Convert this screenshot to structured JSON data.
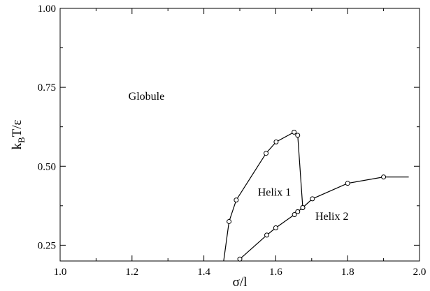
{
  "chart_data": {
    "type": "line",
    "title": "",
    "xlabel": "σ/l",
    "ylabel_parts": {
      "k": "k",
      "sub": "B",
      "rest": "T/ε"
    },
    "xlim": [
      1.0,
      2.0
    ],
    "ylim": [
      0.2,
      1.0
    ],
    "xticks": [
      1.0,
      1.2,
      1.4,
      1.6,
      1.8,
      2.0
    ],
    "xtick_labels": [
      "1.0",
      "1.2",
      "1.4",
      "1.6",
      "1.8",
      "2.0"
    ],
    "yticks": [
      0.25,
      0.5,
      0.75,
      1.0
    ],
    "ytick_labels": [
      "0.25",
      "0.50",
      "0.75",
      "1.00"
    ],
    "grid": false,
    "legend": "none",
    "marker": "open-circle",
    "line_color": "#000000",
    "series": [
      {
        "x": [
          1.455,
          1.47,
          1.49,
          1.573,
          1.601,
          1.651,
          1.661,
          1.675
        ],
        "y": [
          0.2,
          0.325,
          0.393,
          0.541,
          0.577,
          0.608,
          0.598,
          0.369
        ],
        "markers": [
          false,
          true,
          true,
          true,
          true,
          true,
          true,
          true
        ]
      },
      {
        "x": [
          1.5,
          1.575,
          1.6,
          1.652,
          1.661,
          1.675,
          1.702,
          1.8,
          1.9,
          1.97
        ],
        "y": [
          0.206,
          0.282,
          0.305,
          0.347,
          0.356,
          0.369,
          0.397,
          0.446,
          0.466,
          0.466
        ],
        "markers": [
          true,
          true,
          true,
          true,
          true,
          true,
          true,
          true,
          true,
          false
        ]
      }
    ],
    "annotations": [
      {
        "text": "Globule",
        "x": 1.19,
        "y": 0.71
      },
      {
        "text": "Helix 1",
        "x": 1.55,
        "y": 0.407
      },
      {
        "text": "Helix 2",
        "x": 1.71,
        "y": 0.33
      }
    ]
  }
}
